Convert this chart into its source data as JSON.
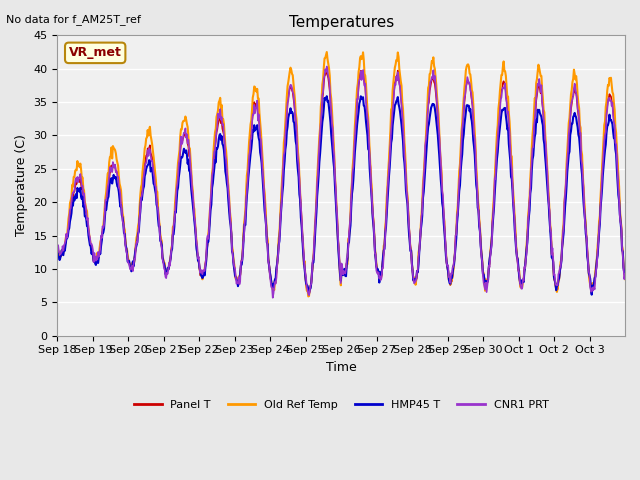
{
  "title": "Temperatures",
  "xlabel": "Time",
  "ylabel": "Temperature (C)",
  "note": "No data for f_AM25T_ref",
  "vr_met_label": "VR_met",
  "ylim": [
    0,
    45
  ],
  "yticks": [
    0,
    5,
    10,
    15,
    20,
    25,
    30,
    35,
    40,
    45
  ],
  "x_tick_labels": [
    "Sep 18",
    "Sep 19",
    "Sep 20",
    "Sep 21",
    "Sep 22",
    "Sep 23",
    "Sep 24",
    "Sep 25",
    "Sep 26",
    "Sep 27",
    "Sep 28",
    "Sep 29",
    "Sep 30",
    "Oct 1",
    "Oct 2",
    "Oct 3"
  ],
  "colors": {
    "panel_t": "#cc0000",
    "old_ref_temp": "#ff9900",
    "hmp45_t": "#0000cc",
    "cnr1_prt": "#9933cc"
  },
  "line_widths": {
    "panel_t": 1.2,
    "old_ref_temp": 1.5,
    "hmp45_t": 1.5,
    "cnr1_prt": 1.2
  },
  "legend_labels": [
    "Panel T",
    "Old Ref Temp",
    "HMP45 T",
    "CNR1 PRT"
  ],
  "bg_color": "#e8e8e8",
  "plot_bg_color": "#f0f0f0",
  "n_days": 16,
  "pts_per_day": 48
}
